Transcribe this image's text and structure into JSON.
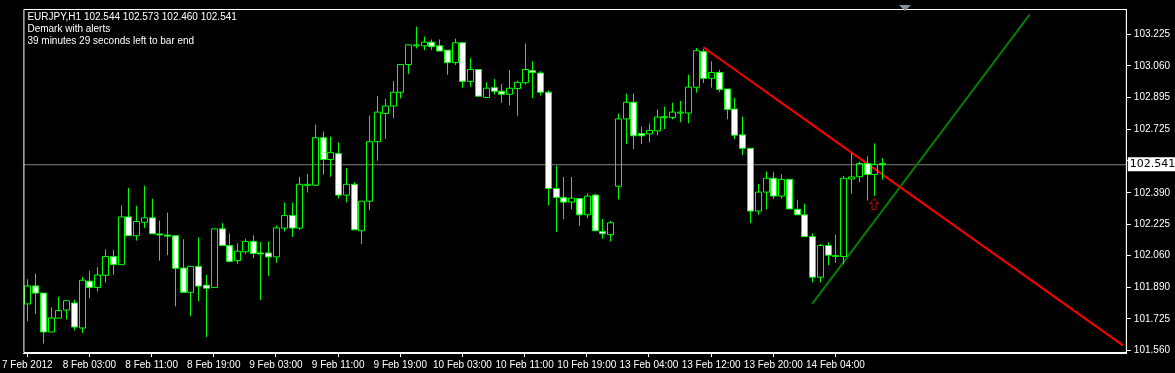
{
  "chart_data": {
    "type": "candlestick",
    "title": "EURJPY,H1  102.544 102.573 102.460 102.541",
    "subtitle": "Demark with alerts",
    "annotations": [
      "39 minutes 29 seconds left to bar end"
    ],
    "categories": [
      "7 Feb 2012",
      null,
      null,
      null,
      null,
      null,
      null,
      null,
      "8 Feb 03:00",
      null,
      null,
      null,
      null,
      null,
      null,
      null,
      "8 Feb 11:00",
      null,
      null,
      null,
      null,
      null,
      null,
      null,
      "8 Feb 19:00",
      null,
      null,
      null,
      null,
      null,
      null,
      null,
      "9 Feb 03:00",
      null,
      null,
      null,
      null,
      null,
      null,
      null,
      "9 Feb 11:00",
      null,
      null,
      null,
      null,
      null,
      null,
      null,
      "9 Feb 19:00",
      null,
      null,
      null,
      null,
      null,
      null,
      null,
      "10 Feb 03:00",
      null,
      null,
      null,
      null,
      null,
      null,
      null,
      "10 Feb 11:00",
      null,
      null,
      null,
      null,
      null,
      null,
      null,
      "10 Feb 19:00",
      null,
      null,
      null,
      null,
      null,
      null,
      null,
      "13 Feb 04:00",
      null,
      null,
      null,
      null,
      null,
      null,
      null,
      "13 Feb 12:00",
      null,
      null,
      null,
      null,
      null,
      null,
      null,
      "13 Feb 20:00",
      null,
      null,
      null,
      null,
      null,
      null,
      null,
      "14 Feb 04:00",
      null,
      null,
      null,
      null,
      null,
      null,
      null,
      null,
      null,
      null,
      null,
      null,
      null,
      null,
      null,
      null,
      null,
      null,
      null,
      null,
      null,
      null,
      null,
      null,
      null,
      null,
      null,
      null,
      null,
      null,
      null,
      null,
      null,
      null,
      null,
      null,
      null
    ],
    "series": [
      {
        "color": "#00ff00",
        "colors": [
          "#00ff00",
          "#ffffff",
          "#ffffff",
          "#00ff00",
          "#00ff00",
          "#00ff00",
          "#ffffff",
          "#00ff00",
          "#ffffff",
          "#00ff00",
          "#00ff00",
          "#ffffff",
          "#00ff00",
          "#ffffff",
          "#00ff00",
          "#00ff00",
          "#ffffff",
          "#ffffff",
          "#ffffff",
          "#ffffff",
          "#ffffff",
          "#00ff00",
          "#ffffff",
          "#ffffff",
          "#00ff00",
          "#ffffff",
          "#ffffff",
          "#00ff00",
          "#00ff00",
          "#ffffff",
          "#ffffff",
          "#ffffff",
          "#00ff00",
          "#00ff00",
          "#ffffff",
          "#00ff00",
          "#00ff00",
          "#00ff00",
          "#ffffff",
          "#00ff00",
          "#ffffff",
          "#00ff00",
          "#ffffff",
          "#00ff00",
          "#00ff00",
          "#00ff00",
          "#00ff00",
          "#00ff00",
          "#00ff00",
          "#00ff00",
          "#00ff00",
          "#00ff00",
          "#ffffff",
          "#ffffff",
          "#ffffff",
          "#00ff00",
          "#ffffff",
          "#00ff00",
          "#ffffff",
          "#00ff00",
          "#ffffff",
          "#ffffff",
          "#00ff00",
          "#00ff00",
          "#00ff00",
          "#ffffff",
          "#ffffff",
          "#ffffff",
          "#ffffff",
          "#ffffff",
          "#00ff00",
          "#ffffff",
          "#00ff00",
          "#ffffff",
          "#ffffff",
          "#00ff00",
          "#00ff00",
          "#00ff00",
          "#ffffff",
          "#ffffff",
          "#00ff00",
          "#00ff00",
          "#00ff00",
          "#00ff00",
          "#00ff00",
          "#00ff00",
          "#00ff00",
          "#ffffff",
          "#00ff00",
          "#ffffff",
          "#ffffff",
          "#ffffff",
          "#ffffff",
          "#ffffff",
          "#00ff00",
          "#00ff00",
          "#ffffff",
          "#00ff00",
          "#ffffff",
          "#ffffff",
          "#ffffff",
          "#ffffff",
          "#00ff00",
          "#ffffff",
          "#00ff00",
          "#00ff00",
          "#00ff00",
          "#00ff00",
          "#ffffff",
          "#00ff00",
          "#ffffff",
          null,
          null,
          null,
          null,
          null,
          null,
          null,
          null,
          null,
          null,
          null,
          null,
          null,
          null,
          null,
          null,
          null,
          null,
          null,
          null,
          null,
          null,
          null,
          null,
          null,
          null,
          null,
          null,
          null,
          null,
          null
        ],
        "ohlc": [
          [
            101.804,
            101.934,
            101.713,
            101.899
          ],
          [
            101.899,
            101.964,
            101.751,
            101.861
          ],
          [
            101.861,
            101.861,
            101.595,
            101.656
          ],
          [
            101.656,
            101.786,
            101.656,
            101.73
          ],
          [
            101.729,
            101.842,
            101.722,
            101.769
          ],
          [
            101.772,
            101.828,
            101.722,
            101.821
          ],
          [
            101.809,
            101.826,
            101.664,
            101.682
          ],
          [
            101.677,
            101.946,
            101.65,
            101.929
          ],
          [
            101.924,
            101.978,
            101.833,
            101.891
          ],
          [
            101.891,
            101.998,
            101.87,
            101.957
          ],
          [
            101.955,
            102.092,
            101.917,
            102.054
          ],
          [
            102.054,
            102.089,
            101.957,
            102.012
          ],
          [
            102.011,
            102.324,
            102.009,
            102.263
          ],
          [
            102.263,
            102.416,
            102.164,
            102.164
          ],
          [
            102.164,
            102.322,
            102.138,
            102.239
          ],
          [
            102.235,
            102.428,
            102.204,
            102.258
          ],
          [
            102.258,
            102.359,
            102.169,
            102.174
          ],
          [
            102.173,
            102.244,
            102.032,
            102.171
          ],
          [
            102.167,
            102.286,
            102.061,
            102.164
          ],
          [
            102.164,
            102.169,
            101.791,
            101.992
          ],
          [
            101.993,
            102.145,
            101.865,
            101.865
          ],
          [
            101.865,
            102.002,
            101.739,
            102.002
          ],
          [
            102.002,
            102.155,
            101.818,
            101.898
          ],
          [
            101.903,
            101.957,
            101.63,
            101.887
          ],
          [
            101.891,
            102.2,
            101.891,
            102.2
          ],
          [
            102.2,
            102.23,
            102.105,
            102.112
          ],
          [
            102.112,
            102.176,
            102.028,
            102.028
          ],
          [
            102.032,
            102.124,
            102.016,
            102.082
          ],
          [
            102.079,
            102.148,
            102.068,
            102.134
          ],
          [
            102.134,
            102.166,
            102.047,
            102.07
          ],
          [
            102.073,
            102.131,
            101.825,
            102.07
          ],
          [
            102.073,
            102.134,
            101.952,
            102.052
          ],
          [
            102.052,
            102.218,
            102.021,
            102.205
          ],
          [
            102.204,
            102.338,
            102.186,
            102.27
          ],
          [
            102.27,
            102.338,
            102.157,
            102.204
          ],
          [
            102.204,
            102.474,
            102.193,
            102.435
          ],
          [
            102.432,
            102.489,
            102.392,
            102.435
          ],
          [
            102.43,
            102.75,
            102.43,
            102.681
          ],
          [
            102.681,
            102.714,
            102.486,
            102.566
          ],
          [
            102.566,
            102.687,
            102.475,
            102.602
          ],
          [
            102.597,
            102.656,
            102.36,
            102.378
          ],
          [
            102.378,
            102.52,
            102.34,
            102.435
          ],
          [
            102.435,
            102.446,
            102.195,
            102.195
          ],
          [
            102.19,
            102.353,
            102.12,
            102.346
          ],
          [
            102.346,
            102.797,
            102.298,
            102.66
          ],
          [
            102.66,
            102.9,
            102.559,
            102.816
          ],
          [
            102.809,
            102.886,
            102.674,
            102.848
          ],
          [
            102.848,
            102.98,
            102.783,
            102.921
          ],
          [
            102.921,
            103.067,
            102.888,
            103.067
          ],
          [
            103.067,
            103.178,
            103.018,
            103.171
          ],
          [
            103.168,
            103.267,
            103.152,
            103.171
          ],
          [
            103.166,
            103.215,
            103.143,
            103.185
          ],
          [
            103.185,
            103.199,
            103.143,
            103.161
          ],
          [
            103.166,
            103.199,
            103.133,
            103.138
          ],
          [
            103.143,
            103.15,
            103.013,
            103.077
          ],
          [
            103.077,
            103.204,
            103.065,
            103.182
          ],
          [
            103.182,
            103.182,
            102.945,
            102.978
          ],
          [
            102.978,
            103.1,
            102.95,
            103.041
          ],
          [
            103.041,
            103.048,
            102.9,
            102.9
          ],
          [
            102.893,
            102.973,
            102.889,
            102.942
          ],
          [
            102.945,
            102.99,
            102.909,
            102.926
          ],
          [
            102.926,
            102.964,
            102.865,
            102.91
          ],
          [
            102.91,
            103.037,
            102.851,
            102.942
          ],
          [
            102.94,
            102.982,
            102.797,
            102.973
          ],
          [
            102.971,
            103.178,
            102.961,
            103.041
          ],
          [
            103.035,
            103.084,
            102.891,
            103.025
          ],
          [
            103.022,
            103.032,
            102.903,
            102.921
          ],
          [
            102.921,
            102.931,
            102.324,
            102.413
          ],
          [
            102.413,
            102.534,
            102.183,
            102.366
          ],
          [
            102.366,
            102.474,
            102.251,
            102.341
          ],
          [
            102.341,
            102.474,
            102.303,
            102.362
          ],
          [
            102.36,
            102.36,
            102.216,
            102.274
          ],
          [
            102.274,
            102.388,
            102.256,
            102.373
          ],
          [
            102.378,
            102.386,
            102.183,
            102.19
          ],
          [
            102.186,
            102.252,
            102.148,
            102.174
          ],
          [
            102.169,
            102.242,
            102.134,
            102.232
          ],
          [
            102.425,
            102.808,
            102.355,
            102.78
          ],
          [
            102.78,
            102.914,
            102.647,
            102.868
          ],
          [
            102.868,
            102.914,
            102.621,
            102.691
          ],
          [
            102.703,
            102.74,
            102.647,
            102.691
          ],
          [
            102.701,
            102.755,
            102.656,
            102.719
          ],
          [
            102.717,
            102.83,
            102.694,
            102.79
          ],
          [
            102.788,
            102.844,
            102.726,
            102.792
          ],
          [
            102.788,
            102.865,
            102.778,
            102.816
          ],
          [
            102.813,
            102.875,
            102.762,
            102.816
          ],
          [
            102.811,
            103.013,
            102.757,
            102.948
          ],
          [
            102.947,
            103.154,
            102.919,
            103.14
          ],
          [
            103.136,
            103.149,
            102.969,
            102.994
          ],
          [
            102.994,
            103.084,
            102.945,
            103.025
          ],
          [
            103.025,
            103.039,
            102.921,
            102.935
          ],
          [
            102.938,
            102.938,
            102.778,
            102.83
          ],
          [
            102.832,
            102.891,
            102.674,
            102.694
          ],
          [
            102.696,
            102.792,
            102.59,
            102.625
          ],
          [
            102.625,
            102.63,
            102.23,
            102.294
          ],
          [
            102.294,
            102.437,
            102.274,
            102.394
          ],
          [
            102.394,
            102.503,
            102.303,
            102.467
          ],
          [
            102.467,
            102.501,
            102.357,
            102.373
          ],
          [
            102.373,
            102.487,
            102.36,
            102.461
          ],
          [
            102.461,
            102.465,
            102.298,
            102.305
          ],
          [
            102.303,
            102.353,
            102.268,
            102.274
          ],
          [
            102.274,
            102.333,
            102.155,
            102.159
          ],
          [
            102.159,
            102.176,
            101.917,
            101.945
          ],
          [
            101.945,
            102.12,
            101.917,
            102.112
          ],
          [
            102.112,
            102.129,
            102.009,
            102.061
          ],
          [
            102.056,
            102.169,
            102.021,
            102.059
          ],
          [
            102.054,
            102.479,
            102.012,
            102.467
          ],
          [
            102.463,
            102.6,
            102.386,
            102.474
          ],
          [
            102.475,
            102.555,
            102.447,
            102.545
          ],
          [
            102.545,
            102.583,
            102.35,
            102.487
          ],
          [
            102.487,
            102.651,
            102.374,
            102.54
          ],
          [
            102.544,
            102.573,
            102.46,
            102.541
          ],
          null,
          null,
          null,
          null,
          null,
          null,
          null,
          null,
          null,
          null,
          null,
          null,
          null,
          null,
          null,
          null,
          null,
          null,
          null,
          null,
          null,
          null,
          null,
          null,
          null,
          null,
          null,
          null,
          null,
          null,
          null
        ]
      },
      {
        "type": "line",
        "color": "#ff0000",
        "values": [
          null,
          null,
          null,
          null,
          null,
          null,
          null,
          null,
          null,
          null,
          null,
          null,
          null,
          null,
          null,
          null,
          null,
          null,
          null,
          null,
          null,
          null,
          null,
          null,
          null,
          null,
          null,
          null,
          null,
          null,
          null,
          null,
          null,
          null,
          null,
          null,
          null,
          null,
          null,
          null,
          null,
          null,
          null,
          null,
          null,
          null,
          null,
          null,
          null,
          null,
          null,
          null,
          null,
          null,
          null,
          null,
          null,
          null,
          null,
          null,
          null,
          null,
          null,
          null,
          null,
          null,
          null,
          null,
          null,
          null,
          null,
          null,
          null,
          null,
          null,
          null,
          null,
          null,
          null,
          null,
          null,
          null,
          null,
          null,
          null,
          null,
          null,
          103.158,
          null,
          null,
          null,
          null,
          null,
          null,
          null,
          null,
          null,
          null,
          null,
          null,
          null,
          null,
          null,
          null,
          null,
          null,
          null,
          null,
          null,
          null,
          null,
          null,
          null,
          null,
          null,
          null,
          null,
          null,
          null,
          null,
          null,
          null,
          null,
          null,
          null,
          null,
          null,
          null,
          null,
          null,
          null,
          null,
          null,
          null,
          null,
          null,
          null,
          null,
          null,
          null,
          null,
          101.585
        ]
      },
      {
        "type": "line",
        "color": "#008000",
        "values": [
          null,
          null,
          null,
          null,
          null,
          null,
          null,
          null,
          null,
          null,
          null,
          null,
          null,
          null,
          null,
          null,
          null,
          null,
          null,
          null,
          null,
          null,
          null,
          null,
          null,
          null,
          null,
          null,
          null,
          null,
          null,
          null,
          null,
          null,
          null,
          null,
          null,
          null,
          null,
          null,
          null,
          null,
          null,
          null,
          null,
          null,
          null,
          null,
          null,
          null,
          null,
          null,
          null,
          null,
          null,
          null,
          null,
          null,
          null,
          null,
          null,
          null,
          null,
          null,
          null,
          null,
          null,
          null,
          null,
          null,
          null,
          null,
          null,
          null,
          null,
          null,
          null,
          null,
          null,
          null,
          null,
          null,
          null,
          null,
          null,
          null,
          null,
          null,
          null,
          null,
          null,
          null,
          null,
          null,
          null,
          null,
          null,
          null,
          null,
          null,
          null,
          101.804,
          null,
          null,
          null,
          null,
          null,
          null,
          null,
          null,
          null,
          null,
          null,
          null,
          null,
          null,
          null,
          null,
          null,
          null,
          null,
          null,
          null,
          null,
          null,
          null,
          null,
          null,
          null,
          103.331,
          null,
          null,
          null,
          null,
          null,
          null,
          null,
          null,
          null,
          null,
          null,
          null
        ]
      }
    ],
    "ylim": [
      101.545,
      103.36
    ],
    "yticks": [
      {
        "value": 101.56,
        "label": "101.560"
      },
      101.725,
      {
        "value": 101.89,
        "label": "101.890"
      },
      {
        "value": 102.06,
        "label": "102.060"
      },
      102.225,
      {
        "value": 102.39,
        "label": "102.390"
      },
      {
        "value": 102.56,
        "label": null
      },
      102.725,
      102.895,
      {
        "value": 103.06,
        "label": "103.060"
      },
      103.225
    ],
    "ref_lines": [
      {
        "axis": "y",
        "value": 102.541,
        "label": "102.541",
        "color": "#808080"
      }
    ]
  }
}
